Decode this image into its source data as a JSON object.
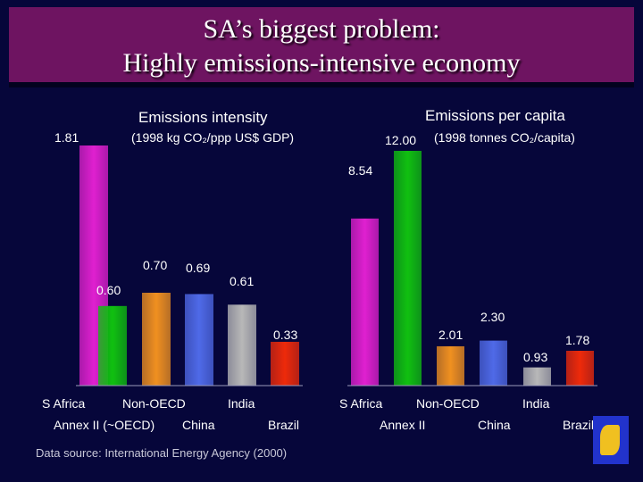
{
  "title": {
    "line1": "SA’s biggest problem:",
    "line2": "Highly emissions-intensive economy"
  },
  "source_note": "Data source: International Energy Agency (2000)",
  "chart_data": [
    {
      "type": "bar",
      "title": "Emissions intensity",
      "subtitle": "(1998 kg CO₂/ppp US$ GDP)",
      "categories": [
        "S Africa",
        "Annex II (~OECD)",
        "Non-OECD",
        "China",
        "India",
        "Brazil"
      ],
      "values": [
        1.81,
        0.6,
        0.7,
        0.69,
        0.61,
        0.33
      ],
      "value_labels": [
        "1.81",
        "0.60",
        "0.70",
        "0.69",
        "0.61",
        "0.33"
      ],
      "colors": [
        "#e020d0",
        "#10c010",
        "#f09020",
        "#4f6ae8",
        "#b8b8b8",
        "#ee2a0a"
      ],
      "ylim": [
        0,
        1.81
      ]
    },
    {
      "type": "bar",
      "title": "Emissions per capita",
      "subtitle": "(1998 tonnes CO₂/capita)",
      "categories": [
        "S Africa",
        "Annex II",
        "Non-OECD",
        "China",
        "India",
        "Brazil"
      ],
      "values": [
        8.54,
        12.0,
        2.01,
        2.3,
        0.93,
        1.78
      ],
      "value_labels": [
        "8.54",
        "12.00",
        "2.01",
        "2.30",
        "0.93",
        "1.78"
      ],
      "colors": [
        "#e020d0",
        "#10c010",
        "#f09020",
        "#4f6ae8",
        "#b8b8b8",
        "#ee2a0a"
      ],
      "ylim": [
        0,
        12.0
      ]
    }
  ]
}
